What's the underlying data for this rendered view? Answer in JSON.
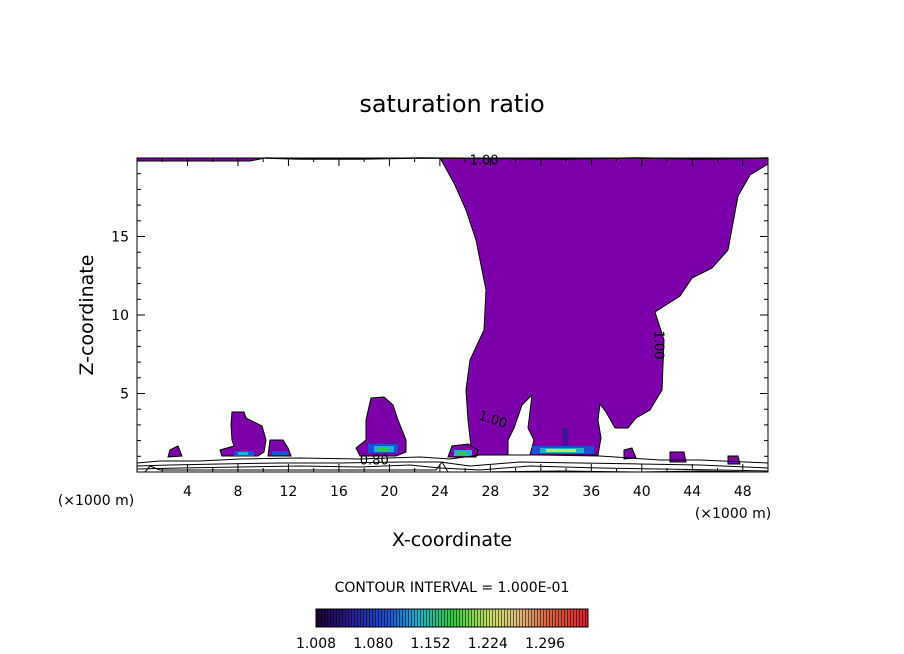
{
  "chart_data": {
    "type": "contour",
    "title": "saturation ratio",
    "xlabel": "X-coordinate",
    "ylabel": "Z-coordinate",
    "x_unit": "(×1000 m)",
    "z_unit": "(×1000 m)",
    "xlim": [
      0,
      50
    ],
    "ylim": [
      0,
      20
    ],
    "x_ticks": [
      4,
      8,
      12,
      16,
      20,
      24,
      28,
      32,
      36,
      40,
      44,
      48
    ],
    "y_ticks": [
      5,
      10,
      15
    ],
    "contour_interval_text": "CONTOUR INTERVAL = 1.000E-01",
    "contour_labels": [
      {
        "text": "1.00",
        "x": 27.5,
        "z": 19.9
      },
      {
        "text": "1.00",
        "x": 28.1,
        "z": 3.4
      },
      {
        "text": "1.00",
        "x": 41.0,
        "z": 8.4
      },
      {
        "text": "0.80",
        "x": 18.8,
        "z": 0.8
      }
    ],
    "colorbar_ticks": [
      "1.008",
      "1.080",
      "1.152",
      "1.224",
      "1.296"
    ],
    "colorbar_range": [
      1.008,
      1.35
    ],
    "fill_color": "#7b00aa",
    "supersaturated_regions": [
      {
        "name": "main-plume",
        "x_range": [
          25,
          50
        ],
        "z_range": [
          1.0,
          20.0
        ]
      },
      {
        "name": "cell-9",
        "x_range": [
          7.0,
          10.5
        ],
        "z_range": [
          1.0,
          3.9
        ]
      },
      {
        "name": "cell-19",
        "x_range": [
          17.8,
          21.2
        ],
        "z_range": [
          1.2,
          4.8
        ]
      },
      {
        "name": "cell-11",
        "x_range": [
          10.3,
          12.2
        ],
        "z_range": [
          1.0,
          2.1
        ]
      },
      {
        "name": "cell-25",
        "x_range": [
          24.8,
          27.0
        ],
        "z_range": [
          1.0,
          1.9
        ]
      }
    ]
  }
}
